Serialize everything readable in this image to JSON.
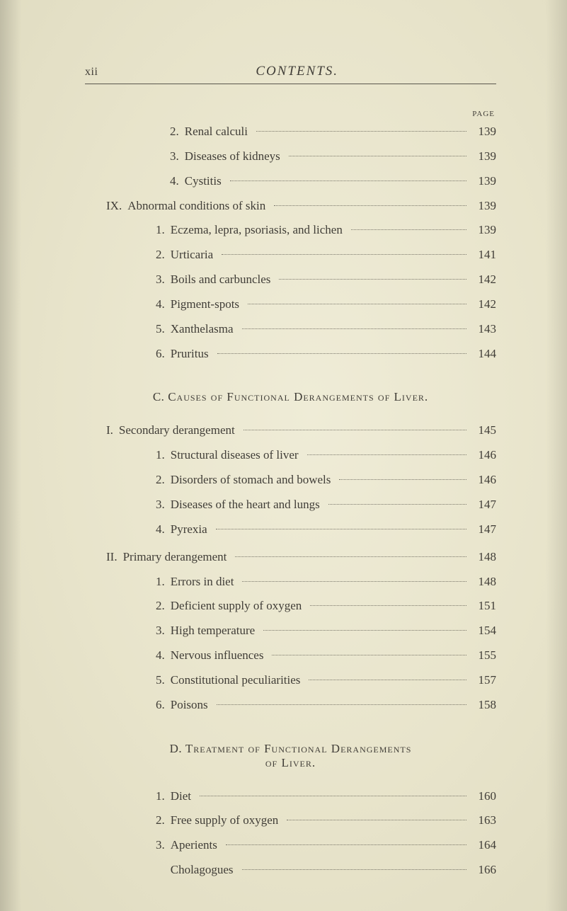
{
  "header": {
    "page_number": "xii",
    "title": "CONTENTS."
  },
  "page_label": "PAGE",
  "top_continuation": {
    "sub_items": [
      {
        "num": "2.",
        "label": "Renal calculi",
        "page": "139"
      },
      {
        "num": "3.",
        "label": "Diseases of kidneys",
        "page": "139"
      },
      {
        "num": "4.",
        "label": "Cystitis",
        "page": "139"
      }
    ],
    "roman": {
      "num": "IX.",
      "label": "Abnormal conditions of skin",
      "page": "139"
    },
    "roman_subs": [
      {
        "num": "1.",
        "label": "Eczema, lepra, psoriasis, and lichen",
        "page": "139"
      },
      {
        "num": "2.",
        "label": "Urticaria",
        "page": "141"
      },
      {
        "num": "3.",
        "label": "Boils and carbuncles",
        "page": "142"
      },
      {
        "num": "4.",
        "label": "Pigment-spots",
        "page": "142"
      },
      {
        "num": "5.",
        "label": "Xanthelasma",
        "page": "143"
      },
      {
        "num": "6.",
        "label": "Pruritus",
        "page": "144"
      }
    ]
  },
  "section_c": {
    "lead": "C. ",
    "title": "Causes of Functional Derangements of Liver.",
    "group1": {
      "roman": {
        "num": "I.",
        "label": "Secondary derangement",
        "page": "145"
      },
      "subs": [
        {
          "num": "1.",
          "label": "Structural diseases of liver",
          "page": "146"
        },
        {
          "num": "2.",
          "label": "Disorders of stomach and bowels",
          "page": "146"
        },
        {
          "num": "3.",
          "label": "Diseases of the heart and lungs",
          "page": "147"
        },
        {
          "num": "4.",
          "label": "Pyrexia",
          "page": "147"
        }
      ]
    },
    "group2": {
      "roman": {
        "num": "II.",
        "label": "Primary derangement",
        "page": "148"
      },
      "subs": [
        {
          "num": "1.",
          "label": "Errors in diet",
          "page": "148"
        },
        {
          "num": "2.",
          "label": "Deficient supply of oxygen",
          "page": "151"
        },
        {
          "num": "3.",
          "label": "High temperature",
          "page": "154"
        },
        {
          "num": "4.",
          "label": "Nervous influences",
          "page": "155"
        },
        {
          "num": "5.",
          "label": "Constitutional peculiarities",
          "page": "157"
        },
        {
          "num": "6.",
          "label": "Poisons",
          "page": "158"
        }
      ]
    }
  },
  "section_d": {
    "lead": "D. ",
    "title_line1": "Treatment of Functional Derangements",
    "title_line2": "of Liver.",
    "items": [
      {
        "num": "1.",
        "label": "Diet",
        "page": "160"
      },
      {
        "num": "2.",
        "label": "Free supply of oxygen",
        "page": "163"
      },
      {
        "num": "3.",
        "label": "Aperients",
        "page": "164"
      },
      {
        "num": "",
        "label": "Cholagogues",
        "page": "166"
      }
    ]
  }
}
